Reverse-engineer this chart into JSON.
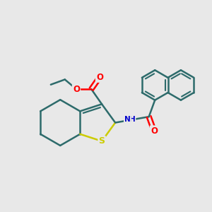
{
  "background_color": "#e8e8e8",
  "bond_color": "#2d6b6b",
  "bond_width": 1.8,
  "sulfur_color": "#cccc00",
  "oxygen_color": "#ff0000",
  "nitrogen_color": "#0000cc",
  "figsize": [
    3.0,
    3.0
  ],
  "dpi": 100,
  "xlim": [
    0,
    10
  ],
  "ylim": [
    0,
    10
  ]
}
